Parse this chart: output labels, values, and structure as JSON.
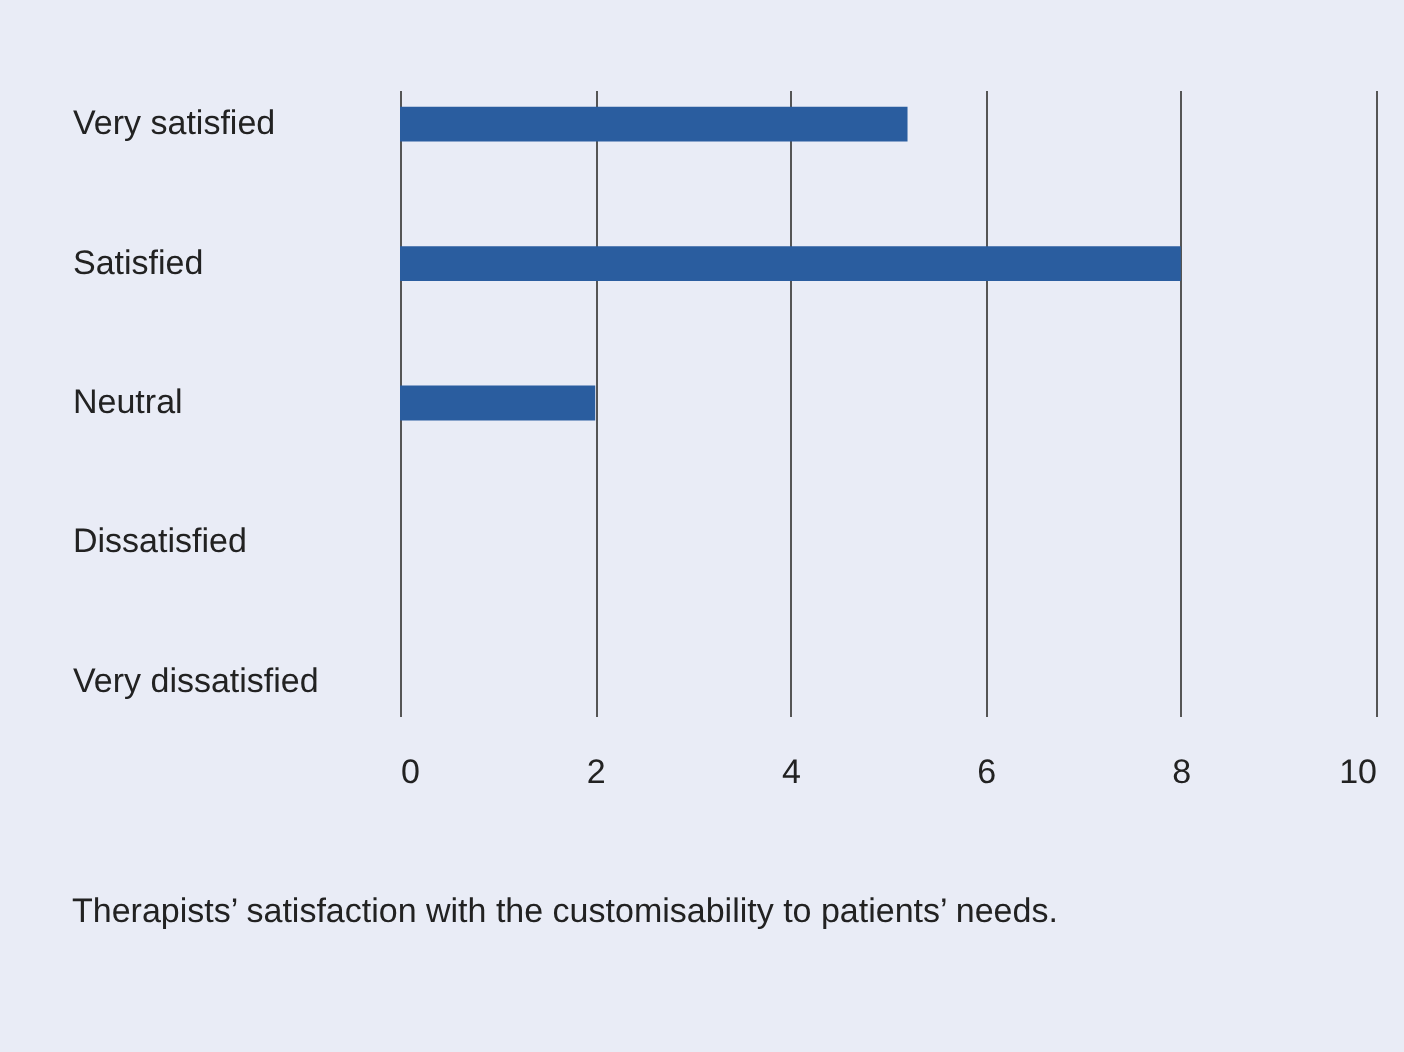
{
  "chart_data": {
    "type": "bar",
    "orientation": "horizontal",
    "categories": [
      "Very satisfied",
      "Satisfied",
      "Neutral",
      "Dissatisfied",
      "Very dissatisfied"
    ],
    "values": [
      5.2,
      8,
      2,
      0,
      0
    ],
    "color": "#2a5d9f",
    "xlim": [
      0,
      10
    ],
    "xticks": [
      0,
      2,
      4,
      6,
      8,
      10
    ],
    "grid": "x",
    "annotations": [
      "Therapists’ satisfaction with the customisability to patients’ needs."
    ]
  }
}
